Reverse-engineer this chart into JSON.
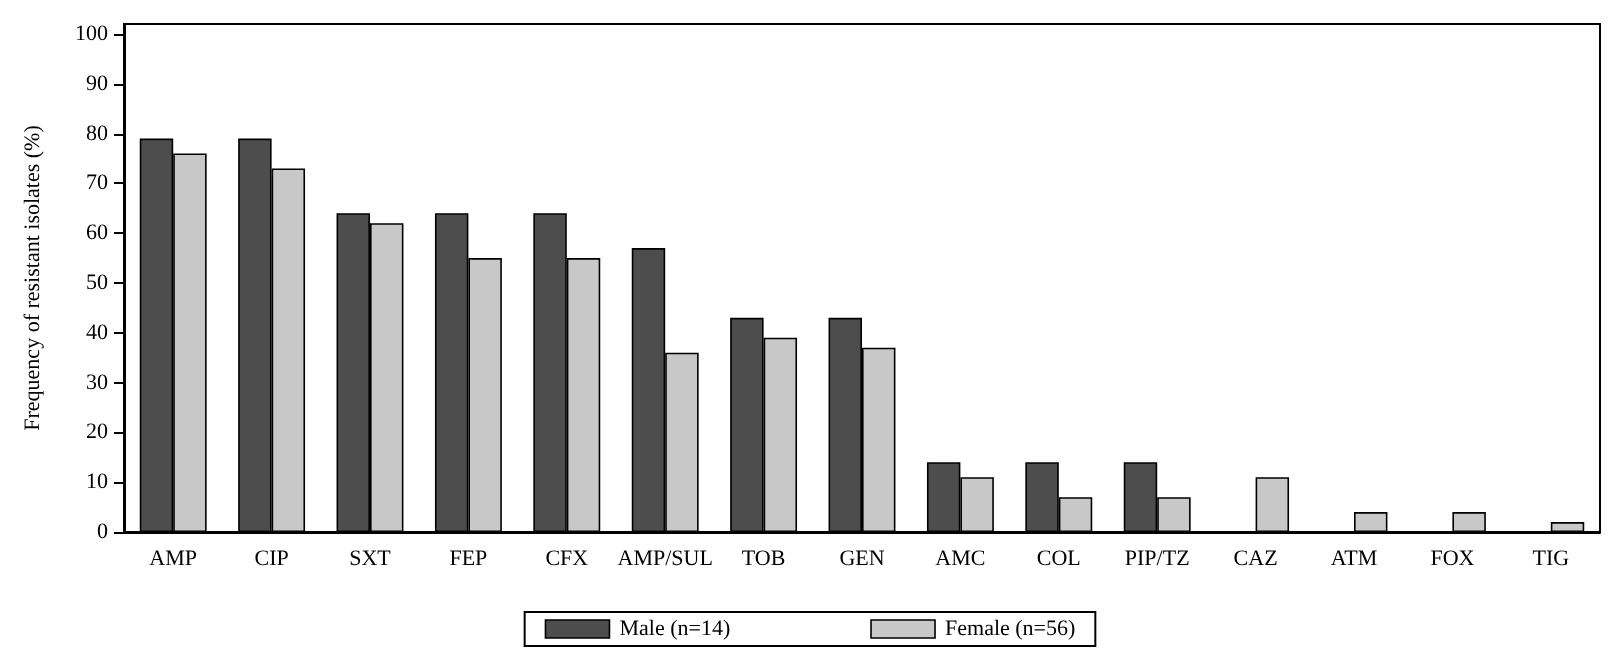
{
  "chart_data": {
    "type": "bar",
    "ylabel": "Frequency of resistant isolates (%)",
    "categories": [
      "AMP",
      "CIP",
      "SXT",
      "FEP",
      "CFX",
      "AMP/SUL",
      "TOB",
      "GEN",
      "AMC",
      "COL",
      "PIP/TZ",
      "CAZ",
      "ATM",
      "FOX",
      "TIG"
    ],
    "series": [
      {
        "name": "Male (n=14)",
        "color": "#4d4d4d",
        "values": [
          79,
          79,
          64,
          64,
          64,
          57,
          43,
          43,
          14,
          14,
          14,
          0,
          0,
          0,
          0
        ]
      },
      {
        "name": "Female (n=56)",
        "color": "#c8c8c8",
        "values": [
          76,
          73,
          62,
          55,
          55,
          36,
          39,
          37,
          11,
          7,
          7,
          11,
          4,
          4,
          2
        ]
      }
    ],
    "ylim": [
      0,
      102
    ],
    "yticks": [
      0,
      10,
      20,
      30,
      40,
      50,
      60,
      70,
      80,
      90,
      100
    ],
    "grid": false,
    "legend": "bottom"
  }
}
